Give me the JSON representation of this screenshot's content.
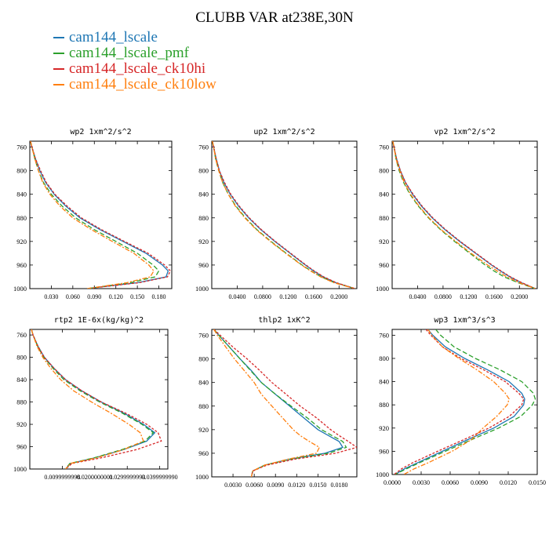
{
  "title": "CLUBB VAR at238E,30N",
  "legend": [
    {
      "label": "cam144_lscale",
      "color": "#1f77b4"
    },
    {
      "label": "cam144_lscale_pmf",
      "color": "#2ca02c"
    },
    {
      "label": "cam144_lscale_ck10hi",
      "color": "#d62728"
    },
    {
      "label": "cam144_lscale_ck10low",
      "color": "#ff7f0e"
    }
  ],
  "chart_data": [
    {
      "type": "line",
      "title": "wp2  1xm^2/s^2",
      "xlim": [
        0,
        0.198
      ],
      "ylim": [
        1000,
        750
      ],
      "xticks": [
        "0.030",
        "0.060",
        "0.090",
        "0.120",
        "0.150",
        "0.180"
      ],
      "xtick_values": [
        0.03,
        0.06,
        0.09,
        0.12,
        0.15,
        0.18
      ],
      "yticks": [
        760,
        800,
        840,
        880,
        920,
        960,
        1000
      ],
      "y": [
        750,
        760,
        780,
        800,
        820,
        840,
        860,
        880,
        900,
        920,
        940,
        960,
        970,
        980,
        990,
        1000
      ],
      "series": [
        {
          "name": "cam144_lscale",
          "values": [
            0.001,
            0.003,
            0.008,
            0.014,
            0.022,
            0.034,
            0.05,
            0.07,
            0.098,
            0.13,
            0.162,
            0.185,
            0.193,
            0.19,
            0.15,
            0.08
          ]
        },
        {
          "name": "cam144_lscale_pmf",
          "values": [
            0.001,
            0.003,
            0.007,
            0.012,
            0.019,
            0.03,
            0.045,
            0.064,
            0.09,
            0.12,
            0.15,
            0.172,
            0.18,
            0.175,
            0.14,
            0.08
          ]
        },
        {
          "name": "cam144_lscale_ck10hi",
          "values": [
            0.001,
            0.003,
            0.008,
            0.015,
            0.023,
            0.035,
            0.052,
            0.072,
            0.1,
            0.132,
            0.165,
            0.188,
            0.196,
            0.192,
            0.152,
            0.08
          ]
        },
        {
          "name": "cam144_lscale_ck10low",
          "values": [
            0.001,
            0.003,
            0.007,
            0.012,
            0.018,
            0.028,
            0.042,
            0.06,
            0.086,
            0.115,
            0.145,
            0.166,
            0.173,
            0.168,
            0.135,
            0.08
          ]
        }
      ]
    },
    {
      "type": "line",
      "title": "up2  1xm^2/s^2",
      "xlim": [
        0,
        0.228
      ],
      "ylim": [
        1000,
        750
      ],
      "xticks": [
        "0.0400",
        "0.0800",
        "0.1200",
        "0.1600",
        "0.2000"
      ],
      "xtick_values": [
        0.04,
        0.08,
        0.12,
        0.16,
        0.2
      ],
      "yticks": [
        760,
        800,
        840,
        880,
        920,
        960,
        1000
      ],
      "y": [
        750,
        760,
        780,
        800,
        820,
        840,
        860,
        880,
        900,
        920,
        940,
        960,
        970,
        980,
        990,
        1000
      ],
      "series": [
        {
          "name": "cam144_lscale",
          "values": [
            0.001,
            0.003,
            0.007,
            0.012,
            0.019,
            0.029,
            0.042,
            0.058,
            0.077,
            0.099,
            0.123,
            0.147,
            0.16,
            0.175,
            0.195,
            0.225
          ]
        },
        {
          "name": "cam144_lscale_pmf",
          "values": [
            0.001,
            0.003,
            0.006,
            0.011,
            0.017,
            0.026,
            0.038,
            0.053,
            0.071,
            0.093,
            0.117,
            0.142,
            0.156,
            0.172,
            0.193,
            0.225
          ]
        },
        {
          "name": "cam144_lscale_ck10hi",
          "values": [
            0.001,
            0.003,
            0.007,
            0.012,
            0.02,
            0.03,
            0.043,
            0.059,
            0.078,
            0.1,
            0.124,
            0.148,
            0.161,
            0.176,
            0.196,
            0.225
          ]
        },
        {
          "name": "cam144_lscale_ck10low",
          "values": [
            0.001,
            0.003,
            0.006,
            0.011,
            0.017,
            0.026,
            0.037,
            0.052,
            0.07,
            0.092,
            0.116,
            0.141,
            0.155,
            0.171,
            0.192,
            0.225
          ]
        }
      ]
    },
    {
      "type": "line",
      "title": "vp2  1xm^2/s^2",
      "xlim": [
        0,
        0.228
      ],
      "ylim": [
        1000,
        750
      ],
      "xticks": [
        "0.0400",
        "0.0800",
        "0.1200",
        "0.1600",
        "0.2000"
      ],
      "xtick_values": [
        0.04,
        0.08,
        0.12,
        0.16,
        0.2
      ],
      "yticks": [
        760,
        800,
        840,
        880,
        920,
        960,
        1000
      ],
      "y": [
        750,
        760,
        780,
        800,
        820,
        840,
        860,
        880,
        900,
        920,
        940,
        960,
        970,
        980,
        990,
        1000
      ],
      "series": [
        {
          "name": "cam144_lscale",
          "values": [
            0.001,
            0.003,
            0.007,
            0.013,
            0.021,
            0.032,
            0.046,
            0.063,
            0.083,
            0.106,
            0.131,
            0.156,
            0.17,
            0.185,
            0.203,
            0.225
          ]
        },
        {
          "name": "cam144_lscale_pmf",
          "values": [
            0.001,
            0.003,
            0.006,
            0.011,
            0.018,
            0.028,
            0.041,
            0.057,
            0.076,
            0.098,
            0.122,
            0.146,
            0.16,
            0.176,
            0.198,
            0.225
          ]
        },
        {
          "name": "cam144_lscale_ck10hi",
          "values": [
            0.001,
            0.003,
            0.007,
            0.013,
            0.021,
            0.033,
            0.047,
            0.064,
            0.084,
            0.107,
            0.132,
            0.157,
            0.171,
            0.186,
            0.204,
            0.225
          ]
        },
        {
          "name": "cam144_lscale_ck10low",
          "values": [
            0.001,
            0.003,
            0.006,
            0.012,
            0.019,
            0.029,
            0.042,
            0.058,
            0.077,
            0.1,
            0.124,
            0.15,
            0.165,
            0.18,
            0.2,
            0.225
          ]
        }
      ]
    },
    {
      "type": "line",
      "title": "rtp2  1E-6x(kg/kg)^2",
      "xlim": [
        0,
        0.0425
      ],
      "ylim": [
        1000,
        750
      ],
      "xticks": [
        "0.0099999998",
        "0.0200000001",
        "0.0299999993",
        "0.0399999990"
      ],
      "xtick_values": [
        0.01,
        0.02,
        0.03,
        0.04
      ],
      "yticks": [
        760,
        800,
        840,
        880,
        920,
        960,
        1000
      ],
      "y": [
        750,
        760,
        780,
        800,
        820,
        840,
        860,
        880,
        900,
        920,
        935,
        950,
        965,
        980,
        990,
        1000
      ],
      "series": [
        {
          "name": "cam144_lscale",
          "values": [
            0.0005,
            0.001,
            0.0025,
            0.0045,
            0.0075,
            0.011,
            0.016,
            0.022,
            0.029,
            0.035,
            0.0385,
            0.036,
            0.029,
            0.02,
            0.0125,
            0.011
          ]
        },
        {
          "name": "cam144_lscale_pmf",
          "values": [
            0.0005,
            0.001,
            0.0024,
            0.0043,
            0.0072,
            0.0105,
            0.0155,
            0.0215,
            0.0285,
            0.0345,
            0.038,
            0.0355,
            0.0285,
            0.0198,
            0.0123,
            0.011
          ]
        },
        {
          "name": "cam144_lscale_ck10hi",
          "values": [
            0.0005,
            0.001,
            0.0025,
            0.0045,
            0.0075,
            0.011,
            0.016,
            0.022,
            0.0295,
            0.036,
            0.0395,
            0.0405,
            0.033,
            0.022,
            0.013,
            0.011
          ]
        },
        {
          "name": "cam144_lscale_ck10low",
          "values": [
            0.0005,
            0.001,
            0.0022,
            0.004,
            0.0065,
            0.0095,
            0.0135,
            0.019,
            0.025,
            0.0305,
            0.034,
            0.035,
            0.029,
            0.0205,
            0.0125,
            0.011
          ]
        }
      ]
    },
    {
      "type": "line",
      "title": "thlp2  1xK^2",
      "xlim": [
        0,
        0.0205
      ],
      "ylim": [
        1000,
        750
      ],
      "xticks": [
        "0.0030",
        "0.0060",
        "0.0090",
        "0.0120",
        "0.0150",
        "0.0180"
      ],
      "xtick_values": [
        0.003,
        0.006,
        0.009,
        0.012,
        0.015,
        0.018
      ],
      "yticks": [
        760,
        800,
        840,
        880,
        920,
        960,
        1000
      ],
      "y": [
        750,
        760,
        780,
        800,
        820,
        840,
        860,
        880,
        900,
        920,
        930,
        940,
        950,
        960,
        970,
        980,
        990,
        1000
      ],
      "series": [
        {
          "name": "cam144_lscale",
          "values": [
            0.0003,
            0.001,
            0.0025,
            0.004,
            0.0056,
            0.007,
            0.009,
            0.011,
            0.013,
            0.015,
            0.0165,
            0.018,
            0.0185,
            0.016,
            0.011,
            0.0075,
            0.0058,
            0.0056
          ]
        },
        {
          "name": "cam144_lscale_pmf",
          "values": [
            0.0003,
            0.001,
            0.0025,
            0.004,
            0.0055,
            0.007,
            0.009,
            0.0112,
            0.0135,
            0.0155,
            0.017,
            0.0185,
            0.019,
            0.0165,
            0.0112,
            0.0075,
            0.0058,
            0.0056
          ]
        },
        {
          "name": "cam144_lscale_ck10hi",
          "values": [
            0.0003,
            0.0012,
            0.003,
            0.005,
            0.0068,
            0.0085,
            0.0105,
            0.0125,
            0.0148,
            0.0168,
            0.018,
            0.0193,
            0.0205,
            0.0175,
            0.0118,
            0.0078,
            0.0058,
            0.0056
          ]
        },
        {
          "name": "cam144_lscale_ck10low",
          "values": [
            0.0003,
            0.0008,
            0.002,
            0.0032,
            0.0046,
            0.006,
            0.007,
            0.0085,
            0.01,
            0.0115,
            0.0125,
            0.0138,
            0.0152,
            0.0148,
            0.0108,
            0.0075,
            0.0058,
            0.0056
          ]
        }
      ]
    },
    {
      "type": "line",
      "title": "wp3  1xm^3/s^3",
      "xlim": [
        0,
        0.015
      ],
      "ylim": [
        1000,
        750
      ],
      "xticks": [
        "0.0000",
        "0.0030",
        "0.0060",
        "0.0090",
        "0.0120",
        "0.0150"
      ],
      "xtick_values": [
        0,
        0.003,
        0.006,
        0.009,
        0.012,
        0.015
      ],
      "yticks": [
        760,
        800,
        840,
        880,
        920,
        960,
        1000
      ],
      "y": [
        750,
        760,
        780,
        800,
        820,
        840,
        860,
        870,
        880,
        900,
        920,
        940,
        960,
        980,
        990,
        1000
      ],
      "series": [
        {
          "name": "cam144_lscale",
          "values": [
            0.0037,
            0.0042,
            0.0055,
            0.0075,
            0.0099,
            0.0121,
            0.0134,
            0.0137,
            0.0136,
            0.0126,
            0.0105,
            0.0078,
            0.0052,
            0.0026,
            0.0013,
            0.0003
          ]
        },
        {
          "name": "cam144_lscale_pmf",
          "values": [
            0.0045,
            0.005,
            0.0064,
            0.0086,
            0.0112,
            0.0134,
            0.0146,
            0.0148,
            0.0145,
            0.0133,
            0.011,
            0.0082,
            0.0055,
            0.0028,
            0.0015,
            0.0003
          ]
        },
        {
          "name": "cam144_lscale_ck10hi",
          "values": [
            0.0035,
            0.004,
            0.0052,
            0.0071,
            0.0095,
            0.0117,
            0.0131,
            0.0136,
            0.0134,
            0.0121,
            0.01,
            0.0074,
            0.0047,
            0.0021,
            0.001,
            0.0002
          ]
        },
        {
          "name": "cam144_lscale_ck10low",
          "values": [
            0.0037,
            0.0041,
            0.0052,
            0.0069,
            0.0088,
            0.0105,
            0.0117,
            0.0121,
            0.0119,
            0.0108,
            0.0094,
            0.0082,
            0.0062,
            0.0037,
            0.0023,
            0.0012
          ]
        }
      ]
    }
  ]
}
